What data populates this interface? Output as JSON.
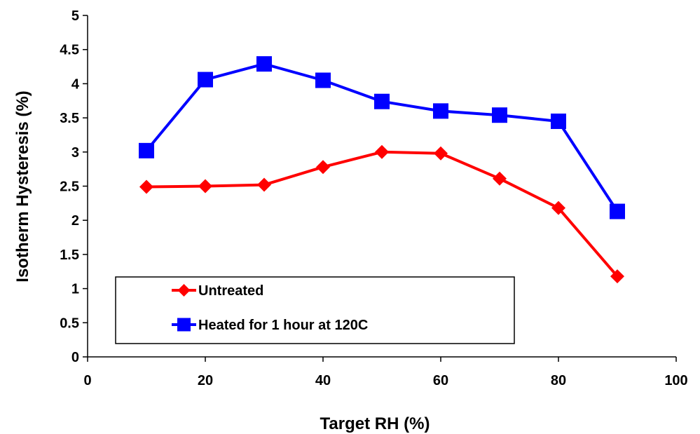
{
  "chart_data": {
    "type": "line",
    "xlabel": "Target RH (%)",
    "ylabel": "Isotherm Hysteresis (%)",
    "xlim": [
      0,
      100
    ],
    "ylim": [
      0,
      5
    ],
    "xticks": [
      0,
      20,
      40,
      60,
      80,
      100
    ],
    "yticks": [
      0,
      0.5,
      1,
      1.5,
      2,
      2.5,
      3,
      3.5,
      4,
      4.5,
      5
    ],
    "grid": false,
    "legend_position": "bottom-left",
    "series": [
      {
        "name": "Untreated",
        "color": "#ff0000",
        "marker": "diamond",
        "x": [
          10,
          20,
          30,
          40,
          50,
          60,
          70,
          80,
          90
        ],
        "y": [
          2.49,
          2.5,
          2.52,
          2.78,
          3.0,
          2.98,
          2.61,
          2.18,
          1.18
        ]
      },
      {
        "name": "Heated for 1 hour at 120C",
        "color": "#0000ff",
        "marker": "square",
        "x": [
          10,
          20,
          30,
          40,
          50,
          60,
          70,
          80,
          90
        ],
        "y": [
          3.02,
          4.06,
          4.29,
          4.05,
          3.74,
          3.6,
          3.54,
          3.45,
          2.13
        ]
      }
    ]
  }
}
